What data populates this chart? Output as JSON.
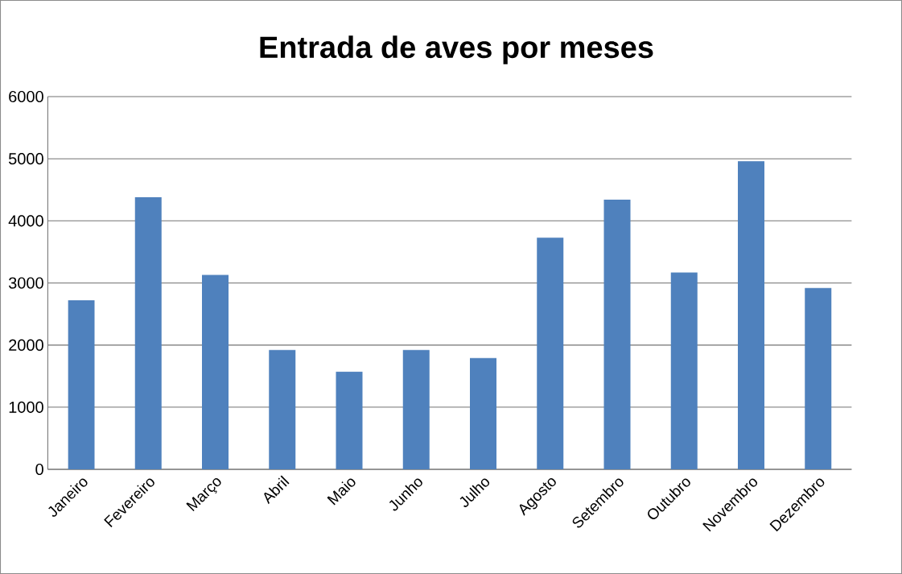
{
  "chart_data": {
    "type": "bar",
    "title": "Entrada de aves por meses",
    "categories": [
      "Janeiro",
      "Fevereiro",
      "Março",
      "Abril",
      "Maio",
      "Junho",
      "Julho",
      "Agosto",
      "Setembro",
      "Outubro",
      "Novembro",
      "Dezembro"
    ],
    "values": [
      2720,
      4380,
      3130,
      1920,
      1570,
      1920,
      1790,
      3730,
      4340,
      3170,
      4960,
      2920
    ],
    "color": "#4f81bd",
    "ylim": [
      0,
      6000
    ],
    "yticks": [
      0,
      1000,
      2000,
      3000,
      4000,
      5000,
      6000
    ],
    "grid": "y"
  }
}
